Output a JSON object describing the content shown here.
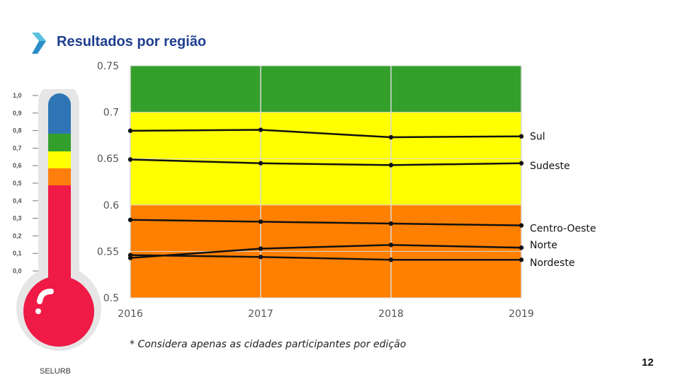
{
  "slide": {
    "title": "Resultados por região",
    "footnote": "* Considera apenas as cidades participantes por edição",
    "brand": "SELURB",
    "page_number": "12"
  },
  "thermometer": {
    "labels": [
      "1,0",
      "0,9",
      "0,8",
      "0,7",
      "0,6",
      "0,5",
      "0,4",
      "0,3",
      "0,2",
      "0,1",
      "0,0"
    ],
    "colors": {
      "blue": "#2f75b6",
      "green": "#33a02c",
      "yellow": "#ffff00",
      "orange": "#ff7f0e",
      "red": "#ef1a46",
      "glass": "#e6e6e6"
    }
  },
  "chart_data": {
    "type": "line",
    "title": "Resultados por região",
    "x": [
      "2016",
      "2017",
      "2018",
      "2019"
    ],
    "ylim": [
      0.5,
      0.75
    ],
    "yticks": [
      "0.5",
      "0.55",
      "0.6",
      "0.65",
      "0.7",
      "0.75"
    ],
    "grid": true,
    "bands": [
      {
        "from": 0.5,
        "to": 0.6,
        "color": "#ff7f00"
      },
      {
        "from": 0.6,
        "to": 0.7,
        "color": "#ffff00"
      },
      {
        "from": 0.7,
        "to": 0.75,
        "color": "#33a02c"
      }
    ],
    "series": [
      {
        "name": "Sul",
        "values": [
          0.68,
          0.681,
          0.673,
          0.674
        ]
      },
      {
        "name": "Sudeste",
        "values": [
          0.649,
          0.645,
          0.643,
          0.645
        ]
      },
      {
        "name": "Centro-Oeste",
        "values": [
          0.584,
          0.582,
          0.58,
          0.578
        ]
      },
      {
        "name": "Norte",
        "values": [
          0.543,
          0.553,
          0.557,
          0.554
        ]
      },
      {
        "name": "Nordeste",
        "values": [
          0.546,
          0.544,
          0.541,
          0.541
        ]
      }
    ]
  }
}
